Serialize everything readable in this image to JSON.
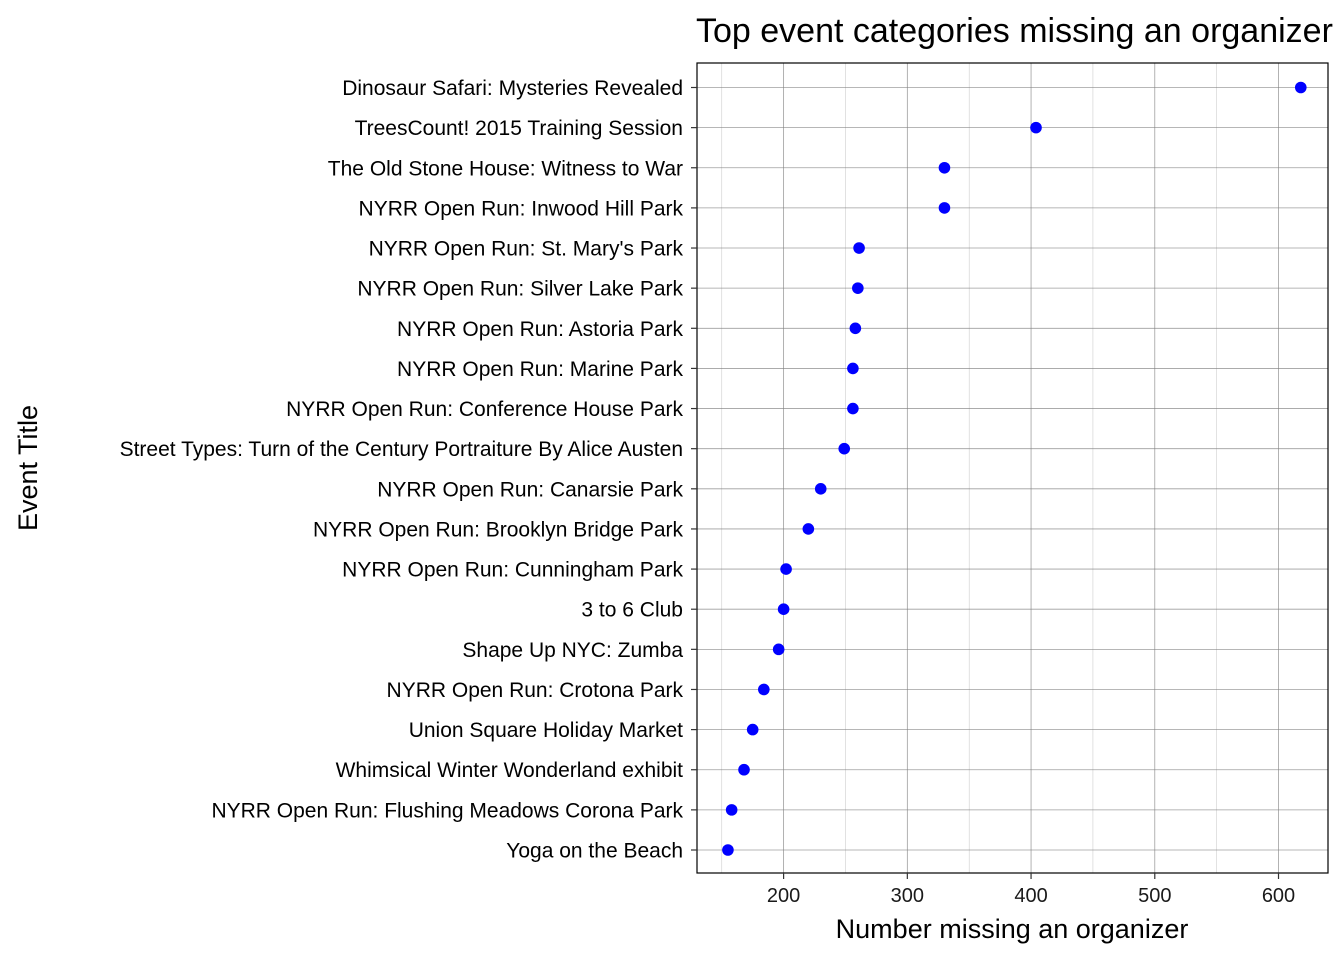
{
  "chart_data": {
    "type": "scatter",
    "title": "Top event categories missing an organizer",
    "xlabel": "Number missing an organizer",
    "ylabel": "Event Title",
    "xlim": [
      130,
      640
    ],
    "xticks": [
      200,
      300,
      400,
      500,
      600
    ],
    "xtick_labels": [
      "200",
      "300",
      "400",
      "500",
      "600"
    ],
    "grid": true,
    "point_color": "#0000ff",
    "categories": [
      "Dinosaur Safari: Mysteries Revealed",
      "TreesCount! 2015 Training Session",
      "The Old Stone House: Witness to War",
      "NYRR Open Run: Inwood Hill Park",
      "NYRR Open Run: St. Mary's Park",
      "NYRR Open Run: Silver Lake Park",
      "NYRR Open Run: Astoria Park",
      "NYRR Open Run: Marine Park",
      "NYRR Open Run: Conference House Park",
      "Street Types: Turn of the Century Portraiture By Alice Austen",
      "NYRR Open Run: Canarsie Park",
      "NYRR Open Run: Brooklyn Bridge Park",
      "NYRR Open Run: Cunningham Park",
      "3 to 6 Club",
      "Shape Up NYC: Zumba",
      "NYRR Open Run: Crotona Park",
      "Union Square Holiday Market",
      "Whimsical Winter Wonderland exhibit",
      "NYRR Open Run: Flushing Meadows Corona Park",
      "Yoga on the Beach"
    ],
    "values": [
      618,
      404,
      330,
      330,
      261,
      260,
      258,
      256,
      256,
      249,
      230,
      220,
      202,
      200,
      196,
      184,
      175,
      168,
      158,
      155
    ]
  }
}
